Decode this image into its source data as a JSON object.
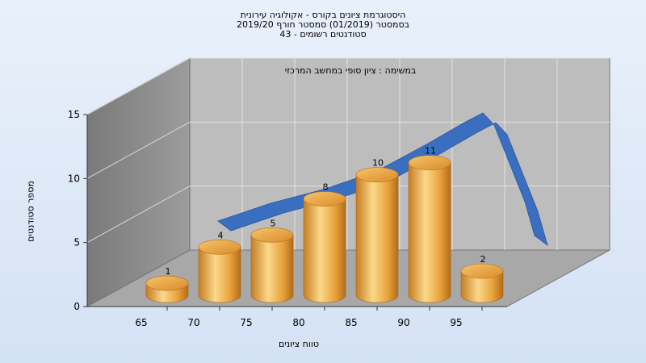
{
  "chart_data": {
    "type": "bar",
    "title_lines": [
      "היסטוגרמת ציונים בקורס - אקולוגיה עירונית",
      "בסמסטר  (01/2019)  סמסטר חורף 2019/20",
      "סטודנטים רשומים - 43"
    ],
    "annotation": "במשימה : ציון סופי במחשב המרכזי",
    "xlabel": "טווח ציונים",
    "ylabel": "מספר סטודנטים",
    "x_ticks": [
      "65",
      "70",
      "75",
      "80",
      "85",
      "90",
      "95"
    ],
    "y_ticks": [
      0,
      5,
      10,
      15
    ],
    "ylim": [
      0,
      15
    ],
    "categories": [
      "65",
      "70",
      "75",
      "80",
      "85",
      "90",
      "95"
    ],
    "values": [
      1,
      4,
      5,
      8,
      10,
      11,
      2
    ],
    "data_labels": [
      "1",
      "4",
      "5",
      "8",
      "10",
      "11",
      "2"
    ],
    "trend_line": {
      "shown": true,
      "color": "#3a6fc0"
    },
    "colors": {
      "bar": "#e8a23c",
      "bar_highlight": "#fbd98a",
      "back_wall": "#b9b9b9",
      "side_wall": "#8a8a8a",
      "floor": "#a9a9a9"
    },
    "grid": true,
    "legend": "none"
  }
}
